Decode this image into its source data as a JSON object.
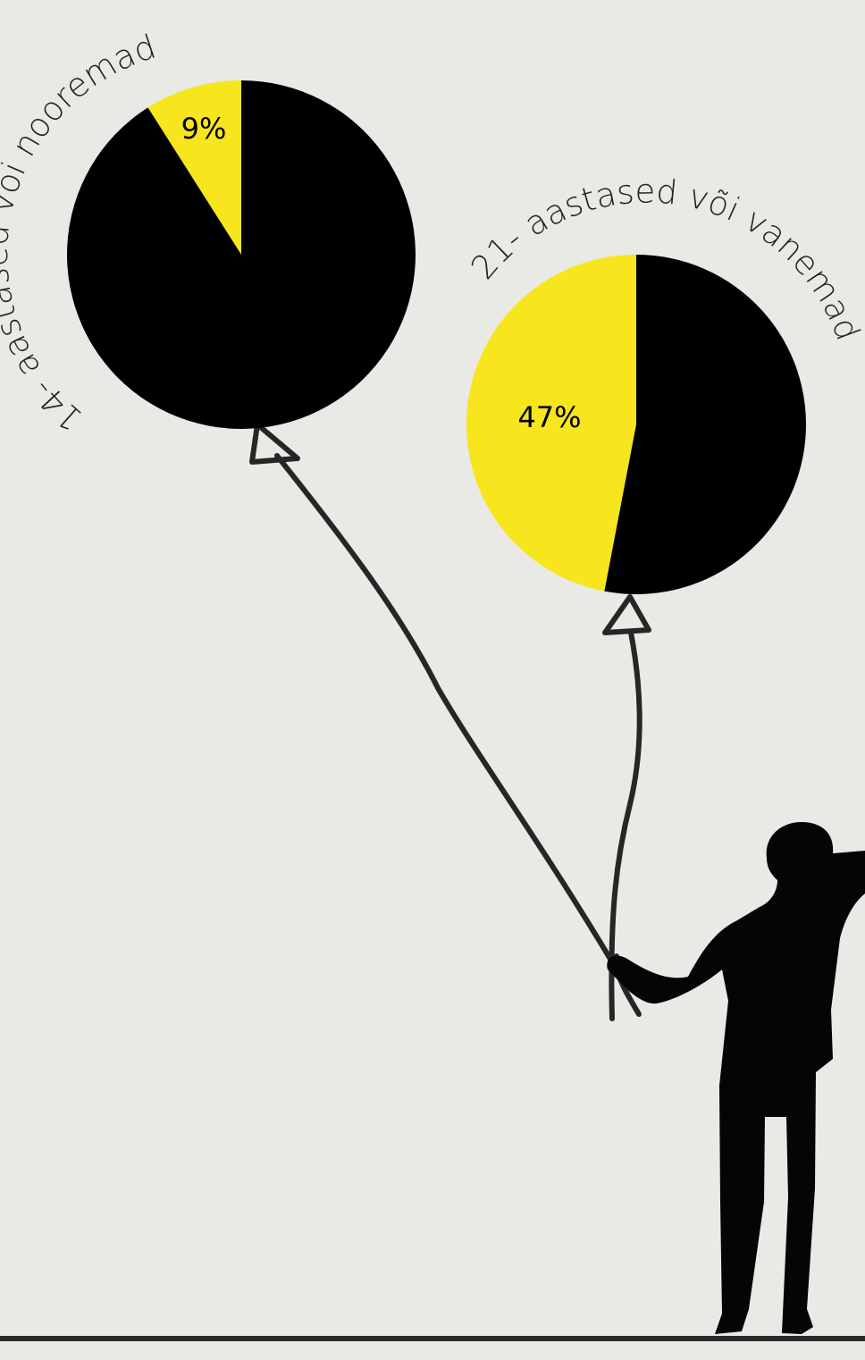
{
  "chart_data": [
    {
      "type": "pie",
      "title": "14- aastased või nooremad",
      "slices": [
        {
          "label": "9%",
          "value": 9,
          "color": "#f7e51e"
        },
        {
          "value": 91,
          "color": "#000000"
        }
      ]
    },
    {
      "type": "pie",
      "title": "21- aastased või vanemad",
      "slices": [
        {
          "label": "47%",
          "value": 47,
          "color": "#f7e51e"
        },
        {
          "value": 53,
          "color": "#000000"
        }
      ]
    }
  ],
  "colors": {
    "background": "#e9e9e5",
    "highlight": "#f7e51e",
    "dark": "#000000",
    "string": "#262626"
  },
  "illustration": {
    "figure": "person-silhouette-holding-balloon-strings",
    "strings": "balloon-strings"
  }
}
